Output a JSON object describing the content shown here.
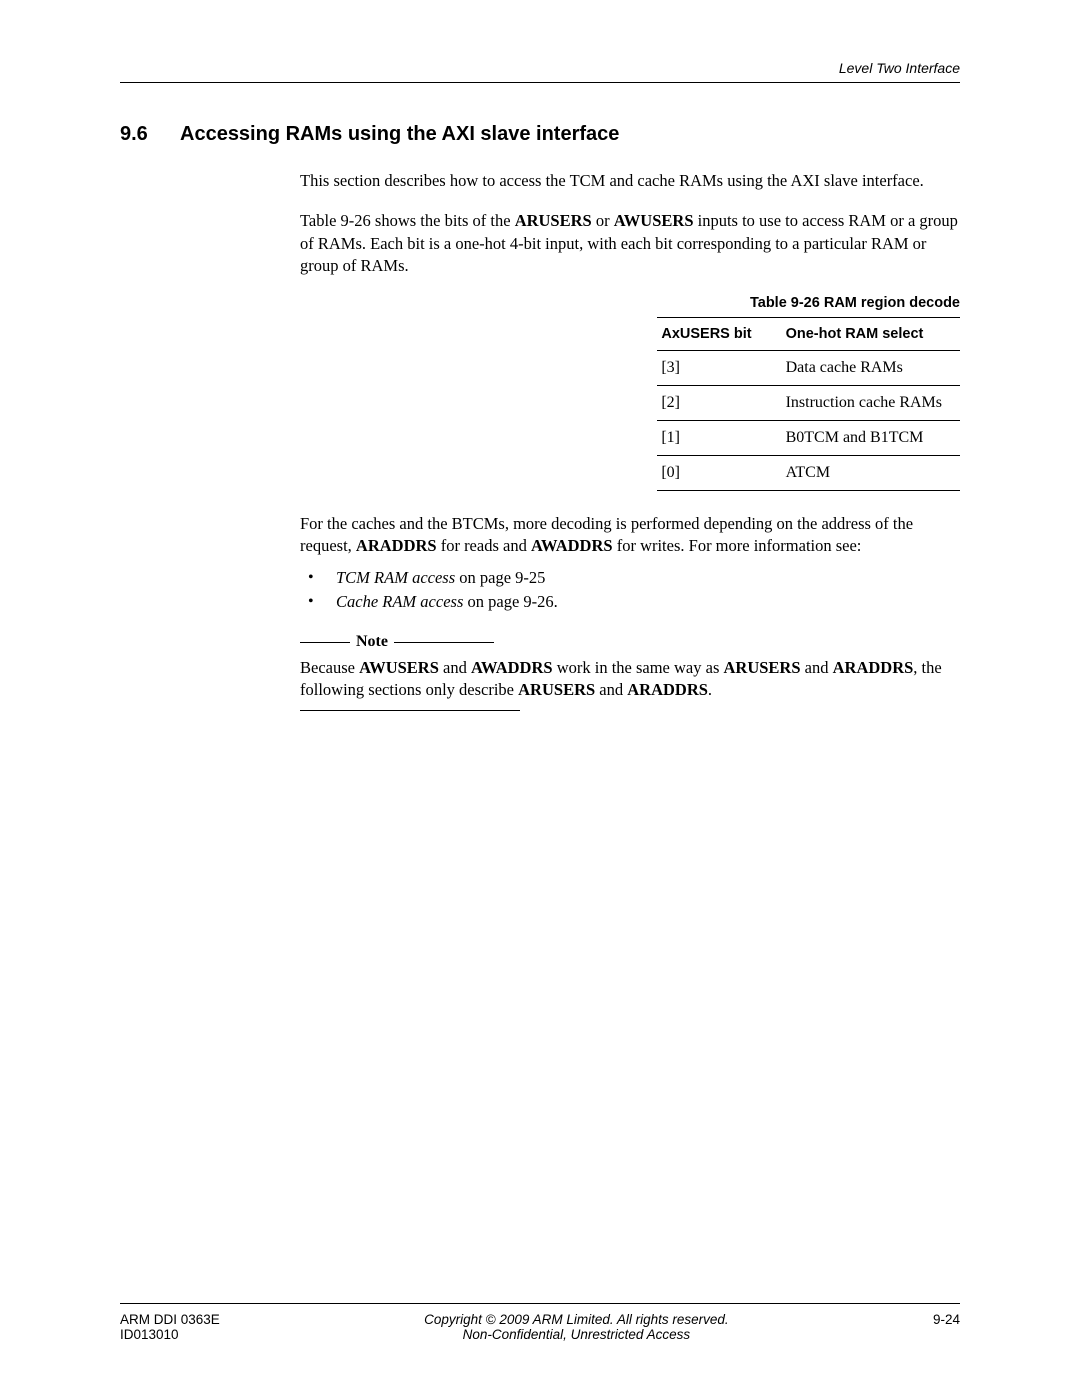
{
  "header": {
    "running_title": "Level Two Interface"
  },
  "section": {
    "number": "9.6",
    "title": "Accessing RAMs using the AXI slave interface"
  },
  "paragraphs": {
    "intro1": "This section describes how to access the TCM and cache RAMs using the AXI slave interface.",
    "intro2_pre": "Table 9-26 shows the bits of the ",
    "intro2_b1": "ARUSERS",
    "intro2_mid1": " or ",
    "intro2_b2": "AWUSERS",
    "intro2_post": " inputs to use to access RAM or a group of RAMs. Each bit is a one-hot 4-bit input, with each bit corresponding to a particular RAM or group of RAMs.",
    "post_table_pre": "For the caches and the BTCMs, more decoding is performed depending on the address of the request, ",
    "post_table_b1": "ARADDRS",
    "post_table_mid1": " for reads and ",
    "post_table_b2": "AWADDRS",
    "post_table_post": " for writes. For more information see:"
  },
  "table": {
    "caption": "Table 9-26 RAM region decode",
    "headers": [
      "AxUSERS bit",
      "One-hot RAM select"
    ],
    "rows": [
      [
        "[3]",
        "Data cache RAMs"
      ],
      [
        "[2]",
        "Instruction cache RAMs"
      ],
      [
        "[1]",
        "B0TCM and B1TCM"
      ],
      [
        "[0]",
        "ATCM"
      ]
    ]
  },
  "bullets": {
    "b1_italic": "TCM RAM access",
    "b1_rest": " on page 9-25",
    "b2_italic": "Cache RAM access",
    "b2_rest": " on page 9-26."
  },
  "note": {
    "label": "Note",
    "text_pre": "Because ",
    "b1": "AWUSERS",
    "mid1": " and ",
    "b2": "AWADDRS",
    "mid2": " work in the same way as ",
    "b3": "ARUSERS",
    "mid3": " and ",
    "b4": "ARADDRS",
    "mid4": ", the following sections only describe ",
    "b5": "ARUSERS",
    "mid5": " and ",
    "b6": "ARADDRS",
    "post": "."
  },
  "footer": {
    "left_line1": "ARM DDI 0363E",
    "left_line2": "ID013010",
    "center_line1": "Copyright © 2009 ARM Limited. All rights reserved.",
    "center_line2": "Non-Confidential, Unrestricted Access",
    "right": "9-24"
  }
}
